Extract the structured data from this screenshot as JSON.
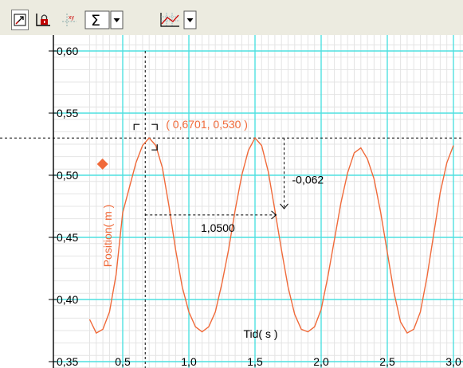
{
  "toolbar": {
    "buttons": [
      {
        "icon": "autoscale-icon"
      },
      {
        "icon": "lock-axes-icon"
      },
      {
        "icon": "coordinates-icon"
      },
      {
        "icon": "sum-icon",
        "dropdown": true
      },
      {
        "icon": "graph-options-icon",
        "dropdown": true
      }
    ]
  },
  "chart_data": {
    "type": "line",
    "xlabel": "Tid( s )",
    "ylabel": "Position( m )",
    "xlim": [
      0.25,
      3.0
    ],
    "ylim": [
      0.35,
      0.61
    ],
    "x_ticks": [
      0.5,
      1.0,
      1.5,
      2.0,
      2.5,
      3.0
    ],
    "x_tick_labels": [
      "0,5",
      "1,0",
      "1,5",
      "2,0",
      "2,5",
      "3,0"
    ],
    "y_ticks": [
      0.35,
      0.4,
      0.45,
      0.5,
      0.55,
      0.6
    ],
    "y_tick_labels": [
      "0,35",
      "0,40",
      "0,45",
      "0,50",
      "0,55",
      "0,60"
    ],
    "grid": true,
    "series": [
      {
        "color": "#f06a3a",
        "x": [
          0.25,
          0.3,
          0.35,
          0.4,
          0.45,
          0.5,
          0.55,
          0.6,
          0.65,
          0.7,
          0.75,
          0.8,
          0.85,
          0.9,
          0.95,
          1.0,
          1.05,
          1.1,
          1.15,
          1.2,
          1.25,
          1.3,
          1.35,
          1.4,
          1.45,
          1.5,
          1.55,
          1.6,
          1.65,
          1.7,
          1.75,
          1.8,
          1.85,
          1.9,
          1.95,
          2.0,
          2.05,
          2.1,
          2.15,
          2.2,
          2.25,
          2.3,
          2.35,
          2.4,
          2.45,
          2.5,
          2.55,
          2.6,
          2.65,
          2.7,
          2.75,
          2.8,
          2.85,
          2.9,
          2.95,
          3.0
        ],
        "y": [
          0.384,
          0.373,
          0.376,
          0.39,
          0.42,
          0.47,
          0.49,
          0.51,
          0.524,
          0.53,
          0.524,
          0.506,
          0.475,
          0.44,
          0.41,
          0.39,
          0.378,
          0.374,
          0.378,
          0.39,
          0.413,
          0.44,
          0.472,
          0.5,
          0.52,
          0.53,
          0.524,
          0.503,
          0.472,
          0.44,
          0.41,
          0.388,
          0.376,
          0.374,
          0.378,
          0.392,
          0.418,
          0.448,
          0.478,
          0.502,
          0.518,
          0.522,
          0.513,
          0.497,
          0.47,
          0.438,
          0.406,
          0.382,
          0.373,
          0.376,
          0.39,
          0.418,
          0.452,
          0.486,
          0.51,
          0.524
        ]
      }
    ],
    "marker": {
      "x": 0.45,
      "y": 0.509,
      "color": "#f06a3a"
    },
    "annotations": {
      "point_label": "( 0,6701, 0,530 )",
      "point": {
        "x": 0.6701,
        "y": 0.53
      },
      "ref_line_y": 0.53,
      "ref_line_x": 0.6701,
      "dx_label": "1,0500",
      "dy_label": "-0,062",
      "dx": {
        "x1": 0.6701,
        "x2": 1.72,
        "y": 0.468
      },
      "dy": {
        "x": 1.72,
        "y1": 0.53,
        "y2": 0.468
      }
    },
    "colors": {
      "major_grid": "#4fe0e0",
      "minor_grid": "#e4e4e4",
      "axis": "#000000",
      "annotation": "#f06a3a"
    }
  }
}
